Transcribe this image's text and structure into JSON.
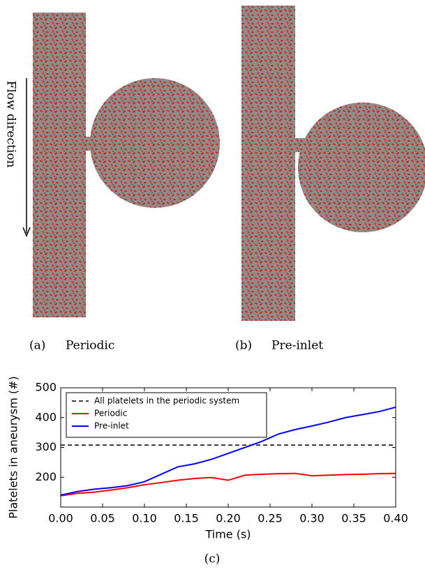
{
  "figure": {
    "flow_label": "Flow direction",
    "captions": [
      {
        "label": "(a)",
        "text": "Periodic"
      },
      {
        "label": "(b)",
        "text": "Pre-inlet"
      }
    ],
    "chart_caption": "(c)"
  },
  "chart_data": {
    "type": "line",
    "x_label": "Time (s)",
    "y_label": "Platelets in aneurysm (#)",
    "x": [
      0,
      0.02,
      0.04,
      0.06,
      0.08,
      0.1,
      0.12,
      0.14,
      0.16,
      0.18,
      0.2,
      0.22,
      0.24,
      0.26,
      0.28,
      0.3,
      0.32,
      0.34,
      0.36,
      0.38,
      0.4
    ],
    "series": [
      {
        "name": "Periodic",
        "color": "#ff0000",
        "values": [
          138,
          146,
          150,
          157,
          165,
          175,
          182,
          190,
          196,
          199,
          190,
          207,
          210,
          212,
          213,
          205,
          207,
          209,
          210,
          212,
          213
        ]
      },
      {
        "name": "Pre-inlet",
        "color": "#0000ff",
        "values": [
          140,
          152,
          160,
          165,
          172,
          185,
          210,
          235,
          245,
          260,
          280,
          300,
          320,
          345,
          360,
          372,
          385,
          400,
          410,
          420,
          435
        ]
      }
    ],
    "reference": {
      "name": "All platelets in the periodic system",
      "value": 308,
      "color": "#000000"
    },
    "xlim": [
      0,
      0.4
    ],
    "ylim": [
      100,
      500
    ],
    "xticks": [
      {
        "value": 0,
        "label": "0.00"
      },
      0.05,
      {
        "value": 0.1,
        "label": "0.10"
      },
      0.15,
      {
        "value": 0.2,
        "label": "0.20"
      },
      0.25,
      {
        "value": 0.3,
        "label": "0.30"
      },
      0.35,
      {
        "value": 0.4,
        "label": "0.40"
      }
    ],
    "yticks": [
      200,
      300,
      400,
      500
    ],
    "legend": "upper left",
    "grid": false
  }
}
